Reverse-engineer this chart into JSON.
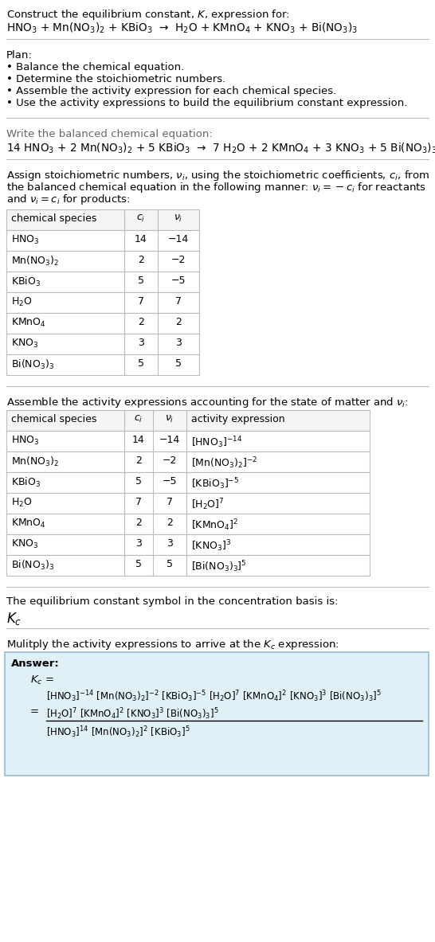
{
  "bg_color": "#ffffff",
  "text_color": "#000000",
  "table_border": "#bbbbbb",
  "answer_bg": "#dff0f7",
  "answer_border": "#99bbcc",
  "title_line1": "Construct the equilibrium constant, $K$, expression for:",
  "title_line2": "HNO$_3$ + Mn(NO$_3$)$_2$ + KBiO$_3$  →  H$_2$O + KMnO$_4$ + KNO$_3$ + Bi(NO$_3$)$_3$",
  "plan_header": "Plan:",
  "plan_items": [
    "• Balance the chemical equation.",
    "• Determine the stoichiometric numbers.",
    "• Assemble the activity expression for each chemical species.",
    "• Use the activity expressions to build the equilibrium constant expression."
  ],
  "balanced_header": "Write the balanced chemical equation:",
  "balanced_eq": "14 HNO$_3$ + 2 Mn(NO$_3$)$_2$ + 5 KBiO$_3$  →  7 H$_2$O + 2 KMnO$_4$ + 3 KNO$_3$ + 5 Bi(NO$_3$)$_3$",
  "stoich_intro_lines": [
    "Assign stoichiometric numbers, $\\nu_i$, using the stoichiometric coefficients, $c_i$, from",
    "the balanced chemical equation in the following manner: $\\nu_i = -c_i$ for reactants",
    "and $\\nu_i = c_i$ for products:"
  ],
  "table1_headers": [
    "chemical species",
    "$c_i$",
    "$\\nu_i$"
  ],
  "table1_rows": [
    [
      "HNO$_3$",
      "14",
      "−14"
    ],
    [
      "Mn(NO$_3$)$_2$",
      "2",
      "−2"
    ],
    [
      "KBiO$_3$",
      "5",
      "−5"
    ],
    [
      "H$_2$O",
      "7",
      "7"
    ],
    [
      "KMnO$_4$",
      "2",
      "2"
    ],
    [
      "KNO$_3$",
      "3",
      "3"
    ],
    [
      "Bi(NO$_3$)$_3$",
      "5",
      "5"
    ]
  ],
  "activity_intro": "Assemble the activity expressions accounting for the state of matter and $\\nu_i$:",
  "table2_headers": [
    "chemical species",
    "$c_i$",
    "$\\nu_i$",
    "activity expression"
  ],
  "table2_rows": [
    [
      "HNO$_3$",
      "14",
      "−14",
      "[HNO$_3$]$^{-14}$"
    ],
    [
      "Mn(NO$_3$)$_2$",
      "2",
      "−2",
      "[Mn(NO$_3$)$_2$]$^{-2}$"
    ],
    [
      "KBiO$_3$",
      "5",
      "−5",
      "[KBiO$_3$]$^{-5}$"
    ],
    [
      "H$_2$O",
      "7",
      "7",
      "[H$_2$O]$^7$"
    ],
    [
      "KMnO$_4$",
      "2",
      "2",
      "[KMnO$_4$]$^2$"
    ],
    [
      "KNO$_3$",
      "3",
      "3",
      "[KNO$_3$]$^3$"
    ],
    [
      "Bi(NO$_3$)$_3$",
      "5",
      "5",
      "[Bi(NO$_3$)$_3$]$^5$"
    ]
  ],
  "kc_intro": "The equilibrium constant symbol in the concentration basis is:",
  "kc_symbol": "$K_c$",
  "multiply_intro": "Mulitply the activity expressions to arrive at the $K_c$ expression:",
  "answer_label": "Answer:",
  "kc_eq_label": "$K_c$ =",
  "kc_full": "[HNO$_3$]$^{-14}$ [Mn(NO$_3$)$_2$]$^{-2}$ [KBiO$_3$]$^{-5}$ [H$_2$O]$^7$ [KMnO$_4$]$^2$ [KNO$_3$]$^3$ [Bi(NO$_3$)$_3$]$^5$",
  "kc_numerator": "[H$_2$O]$^7$ [KMnO$_4$]$^2$ [KNO$_3$]$^3$ [Bi(NO$_3$)$_3$]$^5$",
  "kc_denominator": "[HNO$_3$]$^{14}$ [Mn(NO$_3$)$_2$]$^2$ [KBiO$_3$]$^5$"
}
